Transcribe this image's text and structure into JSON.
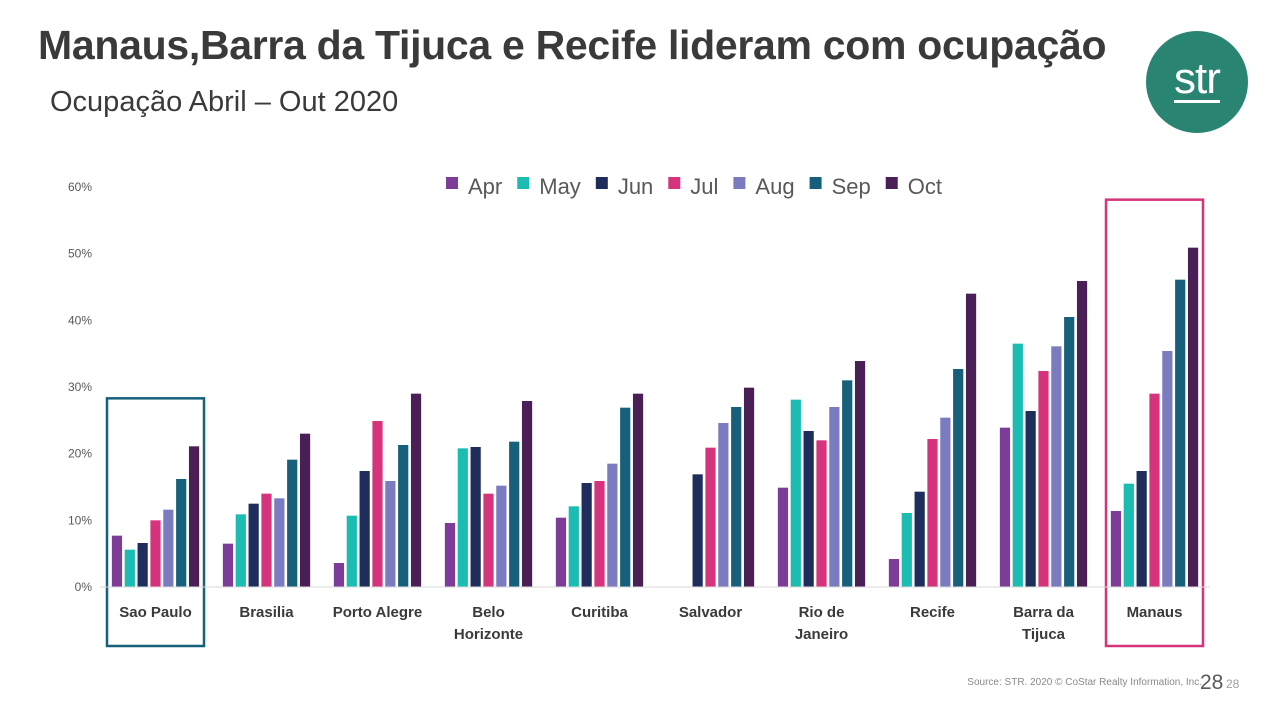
{
  "header": {
    "title": "Manaus,Barra da Tijuca e Recife lideram com ocupação",
    "subtitle": "Ocupação Abril – Out 2020",
    "logo_text": "str",
    "logo_icon": "str-logo-icon",
    "logo_color": "#2a8472"
  },
  "footer": {
    "source": "Source: STR. 2020 © CoStar Realty Information, Inc.",
    "page_number": "28",
    "page_number_small": "28"
  },
  "chart_data": {
    "type": "bar",
    "title": "",
    "xlabel": "",
    "ylabel": "",
    "ylim": [
      0,
      60
    ],
    "y_ticks": [
      "0%",
      "10%",
      "20%",
      "30%",
      "40%",
      "50%",
      "60%"
    ],
    "grid": false,
    "legend_position": "top",
    "categories": [
      [
        "Sao Paulo"
      ],
      [
        "Brasilia"
      ],
      [
        "Porto Alegre"
      ],
      [
        "Belo",
        "Horizonte"
      ],
      [
        "Curitiba"
      ],
      [
        "Salvador"
      ],
      [
        "Rio de",
        "Janeiro"
      ],
      [
        "Recife"
      ],
      [
        "Barra da",
        "Tijuca"
      ],
      [
        "Manaus"
      ]
    ],
    "series": [
      {
        "name": "Apr",
        "color": "#7d3c98",
        "values": [
          7.7,
          6.5,
          3.6,
          9.6,
          10.4,
          null,
          14.9,
          4.2,
          23.9,
          11.4
        ]
      },
      {
        "name": "May",
        "color": "#1bbcb2",
        "values": [
          5.6,
          10.9,
          10.7,
          20.8,
          12.1,
          null,
          28.1,
          11.1,
          36.5,
          15.5
        ]
      },
      {
        "name": "Jun",
        "color": "#1f2d5c",
        "values": [
          6.6,
          12.5,
          17.4,
          21.0,
          15.6,
          16.9,
          23.4,
          14.3,
          26.4,
          17.4
        ]
      },
      {
        "name": "Jul",
        "color": "#d6337d",
        "values": [
          10.0,
          14.0,
          24.9,
          14.0,
          15.9,
          20.9,
          22.0,
          22.2,
          32.4,
          29.0
        ]
      },
      {
        "name": "Aug",
        "color": "#7b7bbf",
        "values": [
          11.6,
          13.3,
          15.9,
          15.2,
          18.5,
          24.6,
          27.0,
          25.4,
          36.1,
          35.4
        ]
      },
      {
        "name": "Sep",
        "color": "#17607c",
        "values": [
          16.2,
          19.1,
          21.3,
          21.8,
          26.9,
          27.0,
          31.0,
          32.7,
          40.5,
          46.1
        ]
      },
      {
        "name": "Oct",
        "color": "#4a1f55",
        "values": [
          21.1,
          23.0,
          29.0,
          27.9,
          29.0,
          29.9,
          33.9,
          44.0,
          45.9,
          50.9
        ]
      }
    ],
    "highlights": [
      {
        "category_index": 0,
        "color": "#17607c"
      },
      {
        "category_index": 9,
        "color": "#d6337d"
      }
    ]
  }
}
